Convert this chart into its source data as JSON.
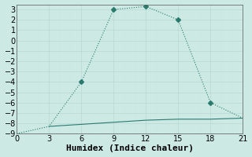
{
  "xlabel": "Humidex (Indice chaleur)",
  "line1_x": [
    0,
    3,
    6,
    9,
    12,
    15,
    18,
    21
  ],
  "line1_y": [
    -9,
    -8.3,
    -4,
    3,
    3.3,
    2,
    -6,
    -7.5
  ],
  "line2_x": [
    3,
    6,
    9,
    12,
    15,
    18,
    21
  ],
  "line2_y": [
    -8.3,
    -8.1,
    -7.9,
    -7.7,
    -7.6,
    -7.6,
    -7.5
  ],
  "line_color": "#2a7a6e",
  "bg_color": "#cce9e4",
  "grid_major_color": "#b8d8d4",
  "grid_minor_color": "#d0e8e5",
  "xlim": [
    0,
    21
  ],
  "ylim": [
    -9,
    3.5
  ],
  "xticks": [
    0,
    3,
    6,
    9,
    12,
    15,
    18,
    21
  ],
  "yticks": [
    3,
    2,
    1,
    0,
    -1,
    -2,
    -3,
    -4,
    -5,
    -6,
    -7,
    -8,
    -9
  ],
  "markersize": 3,
  "fontsize": 7
}
